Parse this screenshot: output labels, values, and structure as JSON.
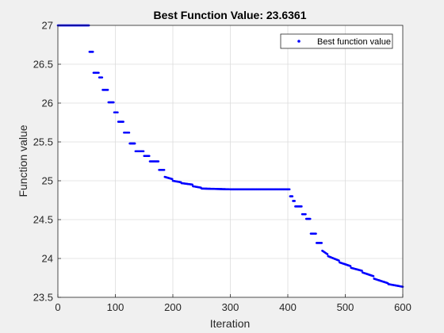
{
  "chart_data": {
    "type": "scatter",
    "title": "Best Function Value: 23.6361",
    "xlabel": "Iteration",
    "ylabel": "Function value",
    "xlim": [
      0,
      600
    ],
    "ylim": [
      23.5,
      27
    ],
    "xticks": [
      "0",
      "100",
      "200",
      "300",
      "400",
      "500",
      "600"
    ],
    "yticks": [
      "23.5",
      "24",
      "24.5",
      "25",
      "25.5",
      "26",
      "26.5",
      "27"
    ],
    "grid": true,
    "legend": {
      "position": "top-right",
      "entries": [
        "Best function value"
      ]
    },
    "series": [
      {
        "name": "Best function value",
        "color": "#0000ff",
        "marker": "dot",
        "segments": [
          [
            0,
            55,
            27.0,
            27.0
          ],
          [
            55,
            62,
            26.66,
            26.66
          ],
          [
            62,
            72,
            26.39,
            26.39
          ],
          [
            72,
            78,
            26.33,
            26.33
          ],
          [
            78,
            88,
            26.17,
            26.17
          ],
          [
            88,
            98,
            26.01,
            26.01
          ],
          [
            98,
            105,
            25.88,
            25.88
          ],
          [
            105,
            115,
            25.76,
            25.76
          ],
          [
            115,
            125,
            25.62,
            25.62
          ],
          [
            125,
            135,
            25.48,
            25.48
          ],
          [
            135,
            150,
            25.38,
            25.38
          ],
          [
            150,
            160,
            25.32,
            25.32
          ],
          [
            160,
            176,
            25.25,
            25.25
          ],
          [
            176,
            186,
            25.14,
            25.14
          ],
          [
            186,
            200,
            25.05,
            25.02
          ],
          [
            200,
            215,
            25.0,
            24.98
          ],
          [
            215,
            235,
            24.97,
            24.95
          ],
          [
            235,
            250,
            24.93,
            24.91
          ],
          [
            250,
            300,
            24.9,
            24.89
          ],
          [
            300,
            404,
            24.89,
            24.89
          ],
          [
            404,
            409,
            24.8,
            24.8
          ],
          [
            409,
            413,
            24.74,
            24.74
          ],
          [
            413,
            425,
            24.67,
            24.67
          ],
          [
            425,
            432,
            24.57,
            24.57
          ],
          [
            432,
            440,
            24.51,
            24.51
          ],
          [
            440,
            450,
            24.32,
            24.32
          ],
          [
            450,
            460,
            24.2,
            24.2
          ],
          [
            460,
            470,
            24.1,
            24.05
          ],
          [
            470,
            490,
            24.03,
            23.97
          ],
          [
            490,
            510,
            23.95,
            23.9
          ],
          [
            510,
            530,
            23.88,
            23.84
          ],
          [
            530,
            550,
            23.82,
            23.77
          ],
          [
            550,
            575,
            23.74,
            23.68
          ],
          [
            575,
            600,
            23.67,
            23.6361
          ]
        ]
      }
    ]
  }
}
